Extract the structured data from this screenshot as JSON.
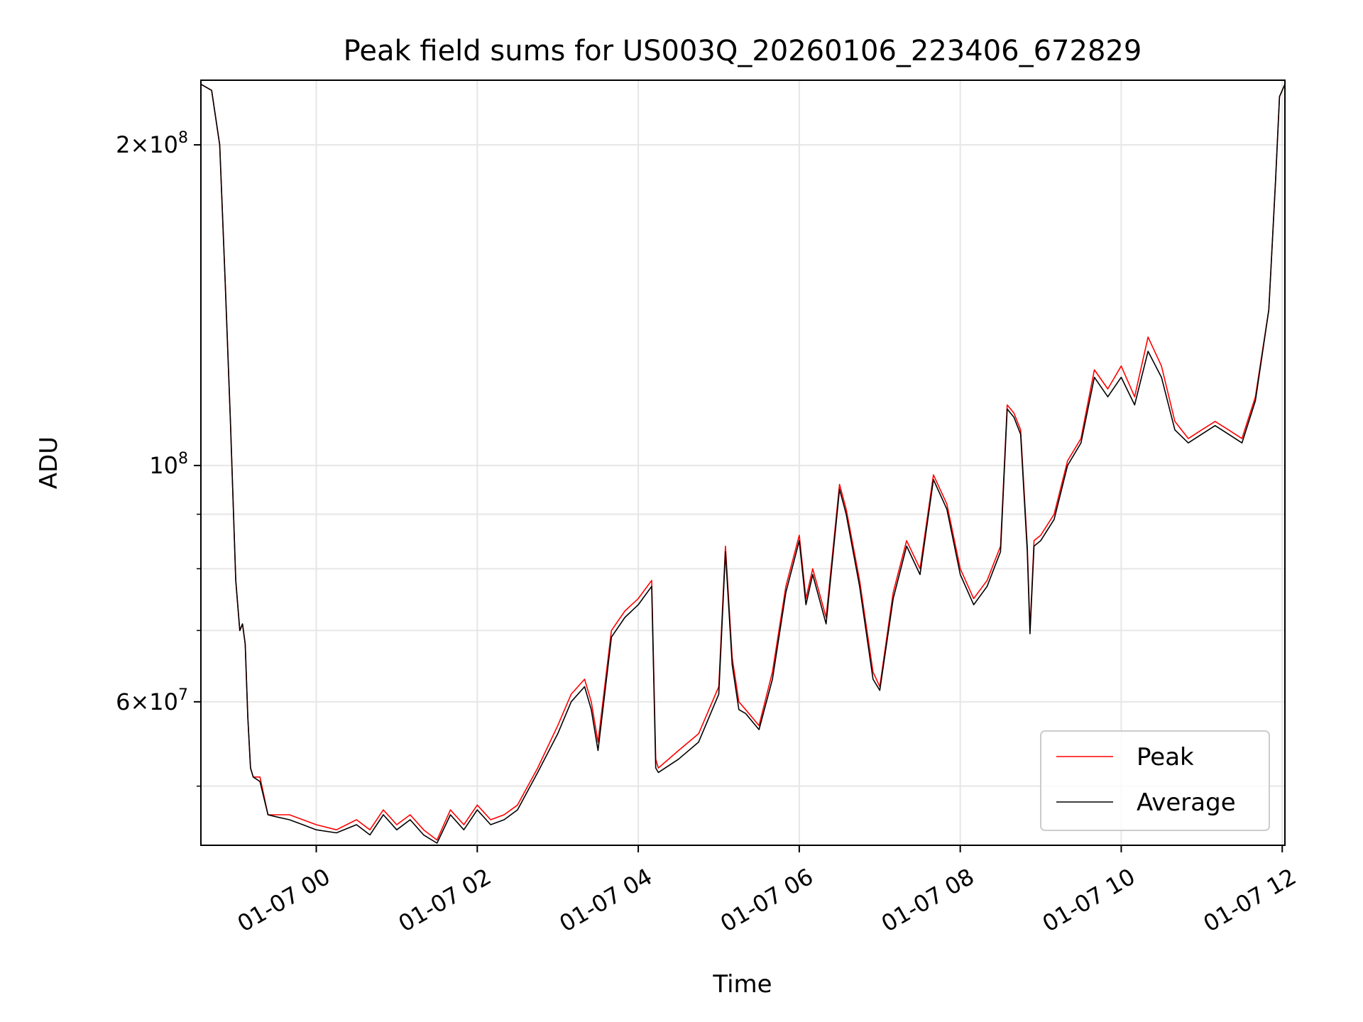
{
  "chart_data": {
    "type": "line",
    "title": "Peak field sums for US003Q_20260106_223406_672829",
    "xlabel": "Time",
    "ylabel": "ADU",
    "yscale": "log",
    "xlim": [
      "2026-01-06 22:34",
      "2026-01-07 12:02"
    ],
    "ylim": [
      44000000,
      230000000
    ],
    "grid": true,
    "legend_position": "lower-right",
    "x_ticks": [
      "01-07 00",
      "01-07 02",
      "01-07 04",
      "01-07 06",
      "01-07 08",
      "01-07 10",
      "01-07 12"
    ],
    "y_ticks": [
      {
        "mantissa": "6",
        "exponent": "7"
      },
      {
        "mantissa": "",
        "exponent": "8",
        "base_only": true
      },
      {
        "mantissa": "2",
        "exponent": "8"
      }
    ],
    "x": [
      "2026-01-06 22:34",
      "2026-01-06 22:42",
      "2026-01-06 22:48",
      "2026-01-06 22:52",
      "2026-01-06 22:56",
      "2026-01-06 23:00",
      "2026-01-06 23:03",
      "2026-01-06 23:05",
      "2026-01-06 23:07",
      "2026-01-06 23:09",
      "2026-01-06 23:11",
      "2026-01-06 23:13",
      "2026-01-06 23:18",
      "2026-01-06 23:24",
      "2026-01-06 23:30",
      "2026-01-06 23:40",
      "2026-01-06 23:50",
      "2026-01-07 00:00",
      "2026-01-07 00:15",
      "2026-01-07 00:30",
      "2026-01-07 00:40",
      "2026-01-07 00:50",
      "2026-01-07 01:00",
      "2026-01-07 01:10",
      "2026-01-07 01:20",
      "2026-01-07 01:30",
      "2026-01-07 01:40",
      "2026-01-07 01:50",
      "2026-01-07 02:00",
      "2026-01-07 02:10",
      "2026-01-07 02:20",
      "2026-01-07 02:30",
      "2026-01-07 02:45",
      "2026-01-07 03:00",
      "2026-01-07 03:10",
      "2026-01-07 03:20",
      "2026-01-07 03:25",
      "2026-01-07 03:30",
      "2026-01-07 03:40",
      "2026-01-07 03:50",
      "2026-01-07 04:00",
      "2026-01-07 04:10",
      "2026-01-07 04:13",
      "2026-01-07 04:15",
      "2026-01-07 04:30",
      "2026-01-07 04:45",
      "2026-01-07 05:00",
      "2026-01-07 05:05",
      "2026-01-07 05:10",
      "2026-01-07 05:15",
      "2026-01-07 05:20",
      "2026-01-07 05:30",
      "2026-01-07 05:40",
      "2026-01-07 05:50",
      "2026-01-07 06:00",
      "2026-01-07 06:05",
      "2026-01-07 06:10",
      "2026-01-07 06:20",
      "2026-01-07 06:30",
      "2026-01-07 06:35",
      "2026-01-07 06:45",
      "2026-01-07 06:55",
      "2026-01-07 07:00",
      "2026-01-07 07:10",
      "2026-01-07 07:20",
      "2026-01-07 07:30",
      "2026-01-07 07:40",
      "2026-01-07 07:50",
      "2026-01-07 08:00",
      "2026-01-07 08:10",
      "2026-01-07 08:20",
      "2026-01-07 08:30",
      "2026-01-07 08:35",
      "2026-01-07 08:40",
      "2026-01-07 08:45",
      "2026-01-07 08:50",
      "2026-01-07 08:52",
      "2026-01-07 08:55",
      "2026-01-07 09:00",
      "2026-01-07 09:10",
      "2026-01-07 09:20",
      "2026-01-07 09:30",
      "2026-01-07 09:40",
      "2026-01-07 09:50",
      "2026-01-07 10:00",
      "2026-01-07 10:10",
      "2026-01-07 10:20",
      "2026-01-07 10:30",
      "2026-01-07 10:40",
      "2026-01-07 10:50",
      "2026-01-07 11:00",
      "2026-01-07 11:10",
      "2026-01-07 11:20",
      "2026-01-07 11:30",
      "2026-01-07 11:40",
      "2026-01-07 11:50",
      "2026-01-07 11:55",
      "2026-01-07 11:58",
      "2026-01-07 12:02"
    ],
    "series": [
      {
        "name": "Peak",
        "color": "#ff0000",
        "values": [
          228000000,
          225000000,
          200000000,
          150000000,
          110000000,
          78000000,
          70000000,
          71000000,
          68000000,
          58000000,
          52000000,
          51000000,
          51000000,
          47000000,
          47000000,
          47000000,
          46500000,
          46000000,
          45500000,
          46500000,
          45500000,
          47500000,
          46000000,
          47000000,
          45500000,
          44500000,
          47500000,
          46000000,
          48000000,
          46500000,
          47000000,
          48000000,
          52000000,
          57000000,
          61000000,
          63000000,
          60000000,
          55000000,
          70000000,
          73000000,
          75000000,
          78000000,
          53000000,
          52000000,
          54000000,
          56000000,
          62000000,
          84000000,
          66000000,
          60000000,
          59000000,
          57000000,
          64000000,
          77000000,
          86000000,
          75000000,
          80000000,
          72000000,
          96000000,
          91000000,
          78000000,
          64000000,
          62000000,
          76000000,
          85000000,
          80000000,
          98000000,
          92000000,
          80000000,
          75000000,
          78000000,
          84000000,
          114000000,
          112000000,
          108000000,
          84000000,
          70000000,
          85000000,
          86000000,
          90000000,
          101000000,
          106000000,
          123000000,
          118000000,
          124000000,
          116000000,
          132000000,
          124000000,
          110000000,
          106000000,
          108000000,
          110000000,
          108000000,
          106000000,
          116000000,
          140000000,
          185000000,
          222000000,
          228000000
        ]
      },
      {
        "name": "Average",
        "color": "#000000",
        "values": [
          228000000,
          225000000,
          200000000,
          150000000,
          110000000,
          78000000,
          70000000,
          71000000,
          68000000,
          58000000,
          52000000,
          51000000,
          50500000,
          47000000,
          46800000,
          46500000,
          46000000,
          45500000,
          45200000,
          46000000,
          45000000,
          47000000,
          45500000,
          46500000,
          45000000,
          44200000,
          47000000,
          45500000,
          47500000,
          46000000,
          46500000,
          47500000,
          51500000,
          56000000,
          60000000,
          62000000,
          59000000,
          54000000,
          69000000,
          72000000,
          74000000,
          77000000,
          52000000,
          51500000,
          53000000,
          55000000,
          61000000,
          83000000,
          65000000,
          59000000,
          58500000,
          56500000,
          63000000,
          76000000,
          85000000,
          74000000,
          79000000,
          71000000,
          95000000,
          90000000,
          77000000,
          63000000,
          61500000,
          75000000,
          84000000,
          79000000,
          97000000,
          91000000,
          79000000,
          74000000,
          77000000,
          83000000,
          113000000,
          111000000,
          107000000,
          83000000,
          69500000,
          84000000,
          85000000,
          89000000,
          100000000,
          105000000,
          121000000,
          116000000,
          121000000,
          114000000,
          128000000,
          121000000,
          108000000,
          105000000,
          107000000,
          109000000,
          107000000,
          105000000,
          115000000,
          140000000,
          185000000,
          222000000,
          228000000
        ]
      }
    ]
  }
}
